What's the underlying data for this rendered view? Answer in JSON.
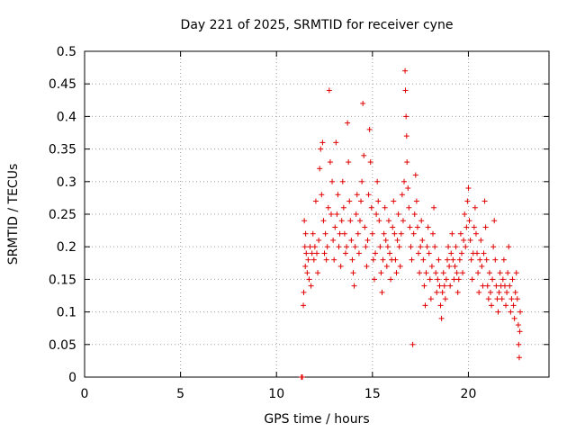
{
  "chart_data": {
    "type": "scatter",
    "title": "Day 221 of 2025, SRMTID for receiver cyne",
    "xlabel": "GPS time / hours",
    "ylabel": "SRMTID / TECUs",
    "xlim": [
      0,
      24.2
    ],
    "ylim": [
      0,
      0.5
    ],
    "x_ticks": [
      0,
      5,
      10,
      15,
      20
    ],
    "x_tick_labels": [
      "0",
      "5",
      "10",
      "15",
      "20"
    ],
    "y_ticks": [
      0,
      0.05,
      0.1,
      0.15,
      0.2,
      0.25,
      0.3,
      0.35,
      0.4,
      0.45,
      0.5
    ],
    "y_tick_labels": [
      "0",
      "0.05",
      "0.1",
      "0.15",
      "0.2",
      "0.25",
      "0.3",
      "0.35",
      "0.4",
      "0.45",
      "0.5"
    ],
    "grid": true,
    "marker": "plus",
    "color": "#e00000",
    "series": [
      {
        "name": "SRMTID",
        "points": [
          [
            11.3,
            0.0
          ],
          [
            11.35,
            0.0
          ],
          [
            11.4,
            0.11
          ],
          [
            11.42,
            0.13
          ],
          [
            11.45,
            0.24
          ],
          [
            11.48,
            0.2
          ],
          [
            11.5,
            0.17
          ],
          [
            11.52,
            0.22
          ],
          [
            11.55,
            0.19
          ],
          [
            11.6,
            0.16
          ],
          [
            11.65,
            0.18
          ],
          [
            11.7,
            0.15
          ],
          [
            11.75,
            0.2
          ],
          [
            11.8,
            0.14
          ],
          [
            11.85,
            0.19
          ],
          [
            11.9,
            0.22
          ],
          [
            11.95,
            0.18
          ],
          [
            12.0,
            0.2
          ],
          [
            12.05,
            0.27
          ],
          [
            12.1,
            0.19
          ],
          [
            12.15,
            0.16
          ],
          [
            12.2,
            0.21
          ],
          [
            12.25,
            0.32
          ],
          [
            12.3,
            0.35
          ],
          [
            12.35,
            0.28
          ],
          [
            12.4,
            0.36
          ],
          [
            12.45,
            0.24
          ],
          [
            12.5,
            0.19
          ],
          [
            12.55,
            0.22
          ],
          [
            12.6,
            0.18
          ],
          [
            12.65,
            0.2
          ],
          [
            12.7,
            0.26
          ],
          [
            12.75,
            0.44
          ],
          [
            12.8,
            0.33
          ],
          [
            12.85,
            0.25
          ],
          [
            12.9,
            0.3
          ],
          [
            12.95,
            0.21
          ],
          [
            13.0,
            0.18
          ],
          [
            13.05,
            0.23
          ],
          [
            13.1,
            0.36
          ],
          [
            13.15,
            0.25
          ],
          [
            13.2,
            0.28
          ],
          [
            13.25,
            0.2
          ],
          [
            13.3,
            0.22
          ],
          [
            13.35,
            0.17
          ],
          [
            13.4,
            0.24
          ],
          [
            13.45,
            0.3
          ],
          [
            13.5,
            0.26
          ],
          [
            13.55,
            0.22
          ],
          [
            13.6,
            0.19
          ],
          [
            13.65,
            0.2
          ],
          [
            13.7,
            0.39
          ],
          [
            13.75,
            0.33
          ],
          [
            13.8,
            0.27
          ],
          [
            13.85,
            0.24
          ],
          [
            13.9,
            0.21
          ],
          [
            13.95,
            0.18
          ],
          [
            14.0,
            0.16
          ],
          [
            14.05,
            0.14
          ],
          [
            14.1,
            0.2
          ],
          [
            14.15,
            0.25
          ],
          [
            14.2,
            0.28
          ],
          [
            14.25,
            0.22
          ],
          [
            14.3,
            0.19
          ],
          [
            14.35,
            0.24
          ],
          [
            14.4,
            0.27
          ],
          [
            14.45,
            0.3
          ],
          [
            14.5,
            0.42
          ],
          [
            14.55,
            0.34
          ],
          [
            14.6,
            0.23
          ],
          [
            14.65,
            0.2
          ],
          [
            14.7,
            0.17
          ],
          [
            14.75,
            0.21
          ],
          [
            14.8,
            0.28
          ],
          [
            14.85,
            0.38
          ],
          [
            14.9,
            0.33
          ],
          [
            14.95,
            0.26
          ],
          [
            15.0,
            0.22
          ],
          [
            15.05,
            0.18
          ],
          [
            15.1,
            0.15
          ],
          [
            15.15,
            0.19
          ],
          [
            15.2,
            0.25
          ],
          [
            15.25,
            0.3
          ],
          [
            15.3,
            0.27
          ],
          [
            15.35,
            0.24
          ],
          [
            15.4,
            0.2
          ],
          [
            15.45,
            0.16
          ],
          [
            15.5,
            0.13
          ],
          [
            15.55,
            0.18
          ],
          [
            15.6,
            0.22
          ],
          [
            15.65,
            0.26
          ],
          [
            15.7,
            0.21
          ],
          [
            15.75,
            0.17
          ],
          [
            15.8,
            0.2
          ],
          [
            15.85,
            0.24
          ],
          [
            15.9,
            0.19
          ],
          [
            15.95,
            0.15
          ],
          [
            16.0,
            0.18
          ],
          [
            16.05,
            0.23
          ],
          [
            16.1,
            0.27
          ],
          [
            16.15,
            0.22
          ],
          [
            16.2,
            0.18
          ],
          [
            16.25,
            0.16
          ],
          [
            16.3,
            0.21
          ],
          [
            16.35,
            0.25
          ],
          [
            16.4,
            0.2
          ],
          [
            16.45,
            0.17
          ],
          [
            16.5,
            0.22
          ],
          [
            16.55,
            0.28
          ],
          [
            16.6,
            0.24
          ],
          [
            16.65,
            0.3
          ],
          [
            16.7,
            0.47
          ],
          [
            16.72,
            0.44
          ],
          [
            16.75,
            0.4
          ],
          [
            16.78,
            0.37
          ],
          [
            16.8,
            0.33
          ],
          [
            16.85,
            0.29
          ],
          [
            16.9,
            0.26
          ],
          [
            16.95,
            0.23
          ],
          [
            17.0,
            0.2
          ],
          [
            17.05,
            0.18
          ],
          [
            17.1,
            0.05
          ],
          [
            17.15,
            0.22
          ],
          [
            17.2,
            0.25
          ],
          [
            17.25,
            0.31
          ],
          [
            17.3,
            0.27
          ],
          [
            17.35,
            0.23
          ],
          [
            17.4,
            0.19
          ],
          [
            17.45,
            0.16
          ],
          [
            17.5,
            0.2
          ],
          [
            17.55,
            0.24
          ],
          [
            17.6,
            0.21
          ],
          [
            17.65,
            0.18
          ],
          [
            17.7,
            0.14
          ],
          [
            17.75,
            0.11
          ],
          [
            17.8,
            0.16
          ],
          [
            17.85,
            0.2
          ],
          [
            17.9,
            0.23
          ],
          [
            17.95,
            0.19
          ],
          [
            18.0,
            0.15
          ],
          [
            18.05,
            0.12
          ],
          [
            18.1,
            0.17
          ],
          [
            18.15,
            0.22
          ],
          [
            18.2,
            0.26
          ],
          [
            18.25,
            0.2
          ],
          [
            18.3,
            0.16
          ],
          [
            18.35,
            0.13
          ],
          [
            18.4,
            0.15
          ],
          [
            18.45,
            0.18
          ],
          [
            18.5,
            0.14
          ],
          [
            18.55,
            0.11
          ],
          [
            18.6,
            0.09
          ],
          [
            18.65,
            0.13
          ],
          [
            18.7,
            0.16
          ],
          [
            18.75,
            0.14
          ],
          [
            18.8,
            0.12
          ],
          [
            18.85,
            0.15
          ],
          [
            18.9,
            0.18
          ],
          [
            18.95,
            0.2
          ],
          [
            19.0,
            0.17
          ],
          [
            19.05,
            0.14
          ],
          [
            19.1,
            0.19
          ],
          [
            19.15,
            0.22
          ],
          [
            19.2,
            0.18
          ],
          [
            19.25,
            0.15
          ],
          [
            19.3,
            0.17
          ],
          [
            19.35,
            0.2
          ],
          [
            19.4,
            0.16
          ],
          [
            19.45,
            0.13
          ],
          [
            19.5,
            0.15
          ],
          [
            19.55,
            0.18
          ],
          [
            19.6,
            0.22
          ],
          [
            19.65,
            0.19
          ],
          [
            19.7,
            0.16
          ],
          [
            19.75,
            0.21
          ],
          [
            19.8,
            0.25
          ],
          [
            19.85,
            0.2
          ],
          [
            19.9,
            0.23
          ],
          [
            19.95,
            0.27
          ],
          [
            20.0,
            0.29
          ],
          [
            20.05,
            0.24
          ],
          [
            20.1,
            0.21
          ],
          [
            20.15,
            0.18
          ],
          [
            20.2,
            0.15
          ],
          [
            20.25,
            0.19
          ],
          [
            20.3,
            0.23
          ],
          [
            20.35,
            0.26
          ],
          [
            20.4,
            0.22
          ],
          [
            20.45,
            0.19
          ],
          [
            20.5,
            0.16
          ],
          [
            20.55,
            0.13
          ],
          [
            20.6,
            0.18
          ],
          [
            20.65,
            0.21
          ],
          [
            20.7,
            0.17
          ],
          [
            20.75,
            0.14
          ],
          [
            20.8,
            0.19
          ],
          [
            20.85,
            0.27
          ],
          [
            20.9,
            0.23
          ],
          [
            20.95,
            0.18
          ],
          [
            21.0,
            0.14
          ],
          [
            21.05,
            0.12
          ],
          [
            21.1,
            0.16
          ],
          [
            21.15,
            0.13
          ],
          [
            21.2,
            0.11
          ],
          [
            21.25,
            0.15
          ],
          [
            21.3,
            0.2
          ],
          [
            21.35,
            0.24
          ],
          [
            21.4,
            0.18
          ],
          [
            21.45,
            0.14
          ],
          [
            21.5,
            0.12
          ],
          [
            21.55,
            0.1
          ],
          [
            21.6,
            0.13
          ],
          [
            21.65,
            0.16
          ],
          [
            21.7,
            0.14
          ],
          [
            21.75,
            0.12
          ],
          [
            21.8,
            0.15
          ],
          [
            21.85,
            0.18
          ],
          [
            21.9,
            0.14
          ],
          [
            21.95,
            0.11
          ],
          [
            22.0,
            0.13
          ],
          [
            22.05,
            0.16
          ],
          [
            22.1,
            0.2
          ],
          [
            22.15,
            0.14
          ],
          [
            22.2,
            0.1
          ],
          [
            22.25,
            0.12
          ],
          [
            22.3,
            0.15
          ],
          [
            22.35,
            0.11
          ],
          [
            22.4,
            0.09
          ],
          [
            22.45,
            0.13
          ],
          [
            22.5,
            0.16
          ],
          [
            22.55,
            0.12
          ],
          [
            22.6,
            0.08
          ],
          [
            22.62,
            0.05
          ],
          [
            22.65,
            0.03
          ],
          [
            22.68,
            0.07
          ],
          [
            22.7,
            0.1
          ]
        ]
      }
    ]
  }
}
